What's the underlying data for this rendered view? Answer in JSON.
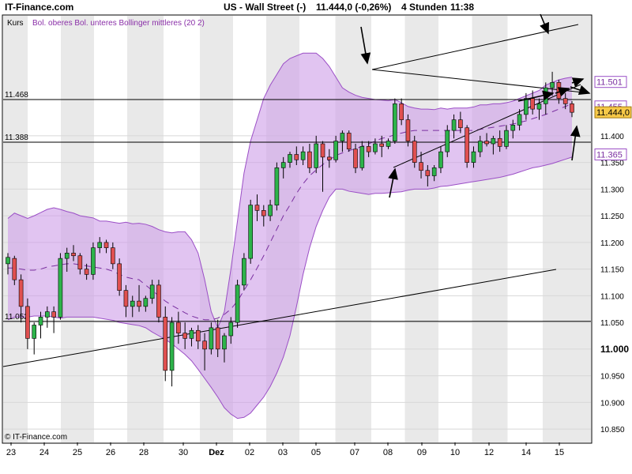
{
  "header": {
    "brand": "IT-Finance.com",
    "instrument": "US - Wall Street (-)",
    "quote": "11.444,0 (-0,26%)",
    "interval": "4 Stunden",
    "time": "11:38"
  },
  "legend": {
    "kurs": "Kurs",
    "bollinger": "Bol. oberes Bol. unteres Bollinger mittleres (20 2)"
  },
  "copyright": "© IT-Finance.com",
  "chart_data": {
    "type": "candlestick",
    "ylim": [
      10825,
      11625
    ],
    "y_ticks": [
      {
        "v": 11400,
        "t": "11.400"
      },
      {
        "v": 11350,
        "t": "11.350"
      },
      {
        "v": 11300,
        "t": "11.300"
      },
      {
        "v": 11250,
        "t": "11.250"
      },
      {
        "v": 11200,
        "t": "11.200"
      },
      {
        "v": 11150,
        "t": "11.150"
      },
      {
        "v": 11100,
        "t": "11.100"
      },
      {
        "v": 11050,
        "t": "11.050"
      },
      {
        "v": 11000,
        "t": "11.000",
        "bold": true
      },
      {
        "v": 10950,
        "t": "10.950"
      },
      {
        "v": 10900,
        "t": "10.900"
      },
      {
        "v": 10850,
        "t": "10.850"
      }
    ],
    "x_labels": [
      "23",
      "24",
      "25",
      "26",
      "28",
      "30",
      "Dez",
      "02",
      "03",
      "05",
      "07",
      "08",
      "09",
      "10",
      "12",
      "14",
      "15"
    ],
    "horizontal_levels": [
      {
        "v": 11468,
        "t": "11.468"
      },
      {
        "v": 11388,
        "t": "11.388"
      },
      {
        "v": 11052,
        "t": "11.052"
      }
    ],
    "value_boxes": [
      {
        "v": 11501,
        "t": "11.501",
        "kind": "band"
      },
      {
        "v": 11455,
        "t": "11.455",
        "kind": "band"
      },
      {
        "v": 11444,
        "t": "11.444,0",
        "kind": "last"
      },
      {
        "v": 11365,
        "t": "11.365",
        "kind": "band"
      }
    ],
    "bollinger_upper": [
      11245,
      11255,
      11250,
      11245,
      11250,
      11256,
      11262,
      11265,
      11262,
      11258,
      11255,
      11250,
      11248,
      11246,
      11240,
      11240,
      11238,
      11236,
      11238,
      11235,
      11236,
      11234,
      11230,
      11224,
      11220,
      11218,
      11220,
      11220,
      11205,
      11180,
      11130,
      11070,
      11040,
      11070,
      11150,
      11240,
      11330,
      11390,
      11430,
      11470,
      11495,
      11515,
      11535,
      11545,
      11550,
      11555,
      11555,
      11555,
      11545,
      11530,
      11510,
      11490,
      11482,
      11476,
      11472,
      11470,
      11468,
      11467,
      11466,
      11468,
      11462,
      11455,
      11452,
      11450,
      11450,
      11449,
      11452,
      11450,
      11452,
      11452,
      11452,
      11454,
      11458,
      11458,
      11460,
      11460,
      11462,
      11465,
      11470,
      11475,
      11480,
      11485,
      11495,
      11500,
      11505,
      11508,
      11510
    ],
    "bollinger_mid": [
      11152,
      11152,
      11150,
      11148,
      11148,
      11150,
      11154,
      11156,
      11158,
      11160,
      11160,
      11158,
      11156,
      11154,
      11152,
      11150,
      11146,
      11140,
      11135,
      11132,
      11130,
      11120,
      11110,
      11100,
      11090,
      11082,
      11075,
      11068,
      11062,
      11058,
      11055,
      11055,
      11058,
      11065,
      11075,
      11090,
      11110,
      11130,
      11152,
      11175,
      11200,
      11225,
      11250,
      11270,
      11292,
      11310,
      11325,
      11336,
      11346,
      11355,
      11363,
      11368,
      11372,
      11376,
      11380,
      11385,
      11390,
      11395,
      11398,
      11402,
      11405,
      11408,
      11410,
      11410,
      11410,
      11410,
      11410,
      11410,
      11410,
      11410,
      11410,
      11410,
      11412,
      11414,
      11416,
      11418,
      11420,
      11422,
      11425,
      11428,
      11432,
      11436,
      11440,
      11445,
      11450,
      11455,
      11460
    ],
    "bollinger_lower": [
      11055,
      11060,
      11060,
      11060,
      11062,
      11062,
      11062,
      11060,
      11058,
      11060,
      11060,
      11060,
      11060,
      11060,
      11058,
      11056,
      11054,
      11050,
      11048,
      11046,
      11044,
      11040,
      11032,
      11025,
      11018,
      11010,
      11000,
      10990,
      10978,
      10962,
      10945,
      10928,
      10910,
      10890,
      10878,
      10870,
      10872,
      10880,
      10895,
      10910,
      10930,
      10955,
      10985,
      11025,
      11080,
      11140,
      11190,
      11230,
      11260,
      11285,
      11300,
      11300,
      11296,
      11294,
      11292,
      11290,
      11292,
      11292,
      11293,
      11294,
      11295,
      11298,
      11300,
      11300,
      11300,
      11302,
      11305,
      11306,
      11308,
      11310,
      11312,
      11314,
      11316,
      11318,
      11320,
      11322,
      11325,
      11328,
      11332,
      11336,
      11340,
      11342,
      11345,
      11348,
      11352,
      11356,
      11360
    ],
    "candles": [
      {
        "o": 11160,
        "h": 11180,
        "l": 11140,
        "c": 11172
      },
      {
        "o": 11170,
        "h": 11175,
        "l": 11120,
        "c": 11130
      },
      {
        "o": 11130,
        "h": 11140,
        "l": 11050,
        "c": 11080
      },
      {
        "o": 11080,
        "h": 11095,
        "l": 11000,
        "c": 11020
      },
      {
        "o": 11020,
        "h": 11050,
        "l": 10990,
        "c": 11045
      },
      {
        "o": 11045,
        "h": 11070,
        "l": 11020,
        "c": 11060
      },
      {
        "o": 11060,
        "h": 11080,
        "l": 11040,
        "c": 11070
      },
      {
        "o": 11070,
        "h": 11080,
        "l": 11030,
        "c": 11060
      },
      {
        "o": 11060,
        "h": 11180,
        "l": 11055,
        "c": 11170
      },
      {
        "o": 11170,
        "h": 11190,
        "l": 11145,
        "c": 11180
      },
      {
        "o": 11180,
        "h": 11195,
        "l": 11165,
        "c": 11175
      },
      {
        "o": 11175,
        "h": 11180,
        "l": 11140,
        "c": 11150
      },
      {
        "o": 11150,
        "h": 11160,
        "l": 11130,
        "c": 11140
      },
      {
        "o": 11140,
        "h": 11200,
        "l": 11130,
        "c": 11190
      },
      {
        "o": 11190,
        "h": 11210,
        "l": 11180,
        "c": 11200
      },
      {
        "o": 11200,
        "h": 11205,
        "l": 11180,
        "c": 11190
      },
      {
        "o": 11190,
        "h": 11200,
        "l": 11150,
        "c": 11160
      },
      {
        "o": 11160,
        "h": 11170,
        "l": 11100,
        "c": 11110
      },
      {
        "o": 11110,
        "h": 11120,
        "l": 11060,
        "c": 11080
      },
      {
        "o": 11080,
        "h": 11100,
        "l": 11060,
        "c": 11090
      },
      {
        "o": 11090,
        "h": 11120,
        "l": 11070,
        "c": 11080
      },
      {
        "o": 11080,
        "h": 11100,
        "l": 11070,
        "c": 11095
      },
      {
        "o": 11095,
        "h": 11130,
        "l": 11085,
        "c": 11120
      },
      {
        "o": 11120,
        "h": 11130,
        "l": 11050,
        "c": 11060
      },
      {
        "o": 11060,
        "h": 11080,
        "l": 10940,
        "c": 10960
      },
      {
        "o": 10960,
        "h": 11060,
        "l": 10930,
        "c": 11050
      },
      {
        "o": 11050,
        "h": 11070,
        "l": 11010,
        "c": 11030
      },
      {
        "o": 11030,
        "h": 11050,
        "l": 11000,
        "c": 11020
      },
      {
        "o": 11020,
        "h": 11040,
        "l": 11005,
        "c": 11035
      },
      {
        "o": 11035,
        "h": 11045,
        "l": 11000,
        "c": 11015
      },
      {
        "o": 11015,
        "h": 11030,
        "l": 10960,
        "c": 11000
      },
      {
        "o": 11000,
        "h": 11050,
        "l": 10990,
        "c": 11040
      },
      {
        "o": 11040,
        "h": 11055,
        "l": 10985,
        "c": 11000
      },
      {
        "o": 11000,
        "h": 11030,
        "l": 10975,
        "c": 11025
      },
      {
        "o": 11025,
        "h": 11060,
        "l": 11010,
        "c": 11050
      },
      {
        "o": 11050,
        "h": 11130,
        "l": 11040,
        "c": 11120
      },
      {
        "o": 11120,
        "h": 11180,
        "l": 11110,
        "c": 11170
      },
      {
        "o": 11170,
        "h": 11280,
        "l": 11160,
        "c": 11270
      },
      {
        "o": 11270,
        "h": 11290,
        "l": 11240,
        "c": 11260
      },
      {
        "o": 11260,
        "h": 11270,
        "l": 11230,
        "c": 11250
      },
      {
        "o": 11250,
        "h": 11280,
        "l": 11240,
        "c": 11270
      },
      {
        "o": 11270,
        "h": 11350,
        "l": 11260,
        "c": 11340
      },
      {
        "o": 11340,
        "h": 11360,
        "l": 11320,
        "c": 11350
      },
      {
        "o": 11350,
        "h": 11370,
        "l": 11340,
        "c": 11365
      },
      {
        "o": 11365,
        "h": 11380,
        "l": 11345,
        "c": 11355
      },
      {
        "o": 11355,
        "h": 11380,
        "l": 11345,
        "c": 11370
      },
      {
        "o": 11370,
        "h": 11385,
        "l": 11330,
        "c": 11340
      },
      {
        "o": 11340,
        "h": 11400,
        "l": 11330,
        "c": 11385
      },
      {
        "o": 11385,
        "h": 11390,
        "l": 11295,
        "c": 11360
      },
      {
        "o": 11360,
        "h": 11375,
        "l": 11340,
        "c": 11355
      },
      {
        "o": 11355,
        "h": 11400,
        "l": 11350,
        "c": 11390
      },
      {
        "o": 11390,
        "h": 11410,
        "l": 11370,
        "c": 11405
      },
      {
        "o": 11405,
        "h": 11410,
        "l": 11370,
        "c": 11375
      },
      {
        "o": 11375,
        "h": 11385,
        "l": 11330,
        "c": 11340
      },
      {
        "o": 11340,
        "h": 11390,
        "l": 11335,
        "c": 11380
      },
      {
        "o": 11380,
        "h": 11390,
        "l": 11360,
        "c": 11370
      },
      {
        "o": 11370,
        "h": 11395,
        "l": 11365,
        "c": 11385
      },
      {
        "o": 11385,
        "h": 11400,
        "l": 11360,
        "c": 11380
      },
      {
        "o": 11380,
        "h": 11395,
        "l": 11375,
        "c": 11390
      },
      {
        "o": 11390,
        "h": 11470,
        "l": 11385,
        "c": 11460
      },
      {
        "o": 11460,
        "h": 11470,
        "l": 11420,
        "c": 11430
      },
      {
        "o": 11430,
        "h": 11440,
        "l": 11380,
        "c": 11390
      },
      {
        "o": 11390,
        "h": 11400,
        "l": 11340,
        "c": 11350
      },
      {
        "o": 11350,
        "h": 11370,
        "l": 11320,
        "c": 11335
      },
      {
        "o": 11335,
        "h": 11345,
        "l": 11305,
        "c": 11325
      },
      {
        "o": 11325,
        "h": 11345,
        "l": 11315,
        "c": 11340
      },
      {
        "o": 11340,
        "h": 11380,
        "l": 11330,
        "c": 11370
      },
      {
        "o": 11370,
        "h": 11420,
        "l": 11360,
        "c": 11410
      },
      {
        "o": 11410,
        "h": 11440,
        "l": 11395,
        "c": 11430
      },
      {
        "o": 11430,
        "h": 11445,
        "l": 11405,
        "c": 11415
      },
      {
        "o": 11415,
        "h": 11420,
        "l": 11340,
        "c": 11350
      },
      {
        "o": 11350,
        "h": 11380,
        "l": 11340,
        "c": 11370
      },
      {
        "o": 11370,
        "h": 11400,
        "l": 11360,
        "c": 11390
      },
      {
        "o": 11390,
        "h": 11405,
        "l": 11380,
        "c": 11385
      },
      {
        "o": 11385,
        "h": 11400,
        "l": 11365,
        "c": 11395
      },
      {
        "o": 11395,
        "h": 11410,
        "l": 11370,
        "c": 11380
      },
      {
        "o": 11380,
        "h": 11420,
        "l": 11375,
        "c": 11410
      },
      {
        "o": 11410,
        "h": 11430,
        "l": 11395,
        "c": 11420
      },
      {
        "o": 11420,
        "h": 11450,
        "l": 11410,
        "c": 11440
      },
      {
        "o": 11440,
        "h": 11480,
        "l": 11430,
        "c": 11470
      },
      {
        "o": 11470,
        "h": 11485,
        "l": 11440,
        "c": 11450
      },
      {
        "o": 11450,
        "h": 11470,
        "l": 11430,
        "c": 11460
      },
      {
        "o": 11460,
        "h": 11500,
        "l": 11440,
        "c": 11490
      },
      {
        "o": 11490,
        "h": 11520,
        "l": 11475,
        "c": 11500
      },
      {
        "o": 11500,
        "h": 11505,
        "l": 11460,
        "c": 11470
      },
      {
        "o": 11470,
        "h": 11480,
        "l": 11450,
        "c": 11460
      },
      {
        "o": 11460,
        "h": 11465,
        "l": 11435,
        "c": 11444
      }
    ]
  }
}
